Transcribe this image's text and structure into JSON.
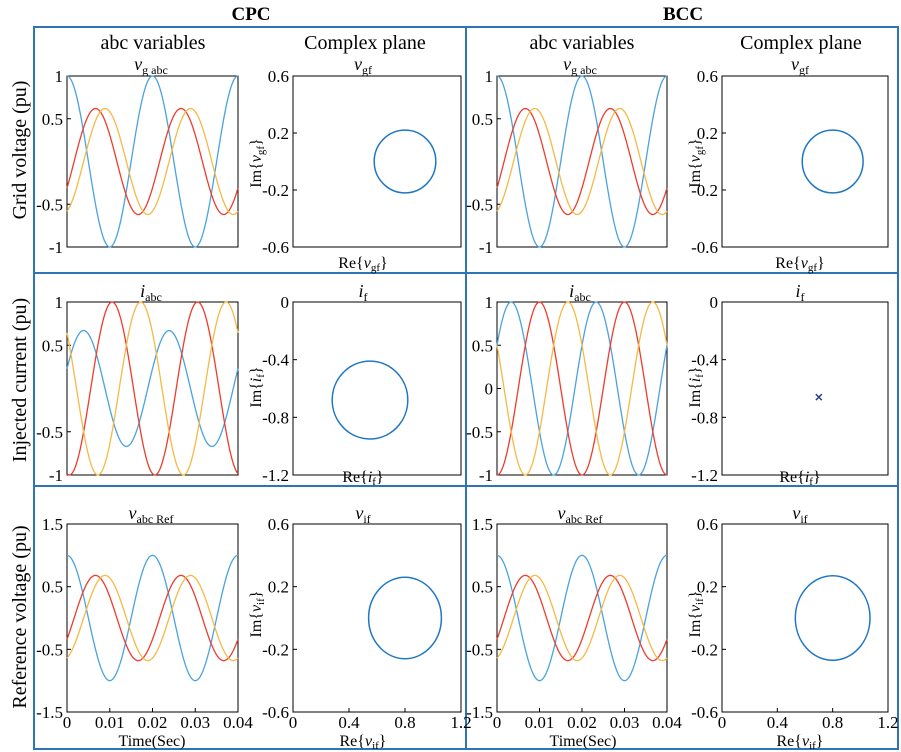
{
  "figure": {
    "columns": [
      "CPC",
      "BCC"
    ],
    "subheadings": [
      "abc variables",
      "Complex plane"
    ],
    "rows": [
      "Grid voltage (pu)",
      "Injected current (pu)",
      "Reference voltage (pu)"
    ],
    "time_axis_label": "Time(Sec)",
    "frame_color": "#2e75b6"
  },
  "colors": {
    "phase_a": "#0072bd",
    "phase_b": "#d95319",
    "phase_c": "#edb120",
    "ab_blue": "#4aa3df",
    "ab_red": "#ee3c2c",
    "ab_yellow": "#f5b945",
    "circle": "#1f77c4"
  },
  "chart_data": [
    {
      "id": "cpc-vg-abc",
      "type": "line",
      "title": "v_g abc",
      "x": {
        "range": [
          0,
          0.04
        ],
        "ticks": [],
        "tick_labels": []
      },
      "y": {
        "range": [
          -1,
          1
        ],
        "ticks": [
          1,
          0.5,
          -0.5,
          -1
        ],
        "tick_labels": [
          "1",
          "0.5",
          "-0.5",
          "-1"
        ]
      },
      "series": [
        {
          "color": "ab_blue",
          "amp": 1.0,
          "freq": 50,
          "phase_deg": 90,
          "dc": 0
        },
        {
          "color": "ab_red",
          "amp": 0.62,
          "freq": 50,
          "phase_deg": -30,
          "dc": 0
        },
        {
          "color": "ab_yellow",
          "amp": 0.62,
          "freq": 50,
          "phase_deg": -70,
          "dc": 0
        }
      ]
    },
    {
      "id": "cpc-vgf",
      "type": "scatter",
      "title": "v_gf",
      "xlabel": "Re{v_gf}",
      "ylabel": "Im{v_gf}",
      "x": {
        "range": [
          0,
          1.2
        ],
        "ticks": [],
        "tick_labels": []
      },
      "y": {
        "range": [
          -0.6,
          0.6
        ],
        "ticks": [
          0.6,
          0.2,
          -0.2,
          -0.6
        ],
        "tick_labels": [
          "0.6",
          "0.2",
          "-0.2",
          "-0.6"
        ]
      },
      "circle": {
        "cx": 0.8,
        "cy": 0.0,
        "r": 0.22
      }
    },
    {
      "id": "bcc-vg-abc",
      "type": "line",
      "title": "v_g abc",
      "x": {
        "range": [
          0,
          0.04
        ],
        "ticks": [],
        "tick_labels": []
      },
      "y": {
        "range": [
          -1,
          1
        ],
        "ticks": [
          1,
          0.5,
          -0.5,
          -1
        ],
        "tick_labels": [
          "1",
          "0.5",
          "-0.5",
          "-1"
        ]
      },
      "series": [
        {
          "color": "ab_blue",
          "amp": 1.0,
          "freq": 50,
          "phase_deg": 90,
          "dc": 0
        },
        {
          "color": "ab_red",
          "amp": 0.62,
          "freq": 50,
          "phase_deg": -30,
          "dc": 0
        },
        {
          "color": "ab_yellow",
          "amp": 0.62,
          "freq": 50,
          "phase_deg": -70,
          "dc": 0
        }
      ]
    },
    {
      "id": "bcc-vgf",
      "type": "scatter",
      "title": "v_gf",
      "xlabel": "Re{v_gf}",
      "ylabel": "Im{v_gf}",
      "x": {
        "range": [
          0,
          1.2
        ],
        "ticks": [],
        "tick_labels": []
      },
      "y": {
        "range": [
          -0.6,
          0.6
        ],
        "ticks": [
          0.6,
          0.2,
          -0.2,
          -0.6
        ],
        "tick_labels": [
          "0.6",
          "0.2",
          "-0.2",
          "-0.6"
        ]
      },
      "circle": {
        "cx": 0.8,
        "cy": 0.0,
        "r": 0.22
      }
    },
    {
      "id": "cpc-iabc",
      "type": "line",
      "title": "i_abc",
      "x": {
        "range": [
          0,
          0.04
        ],
        "ticks": [],
        "tick_labels": []
      },
      "y": {
        "range": [
          -1,
          1
        ],
        "ticks": [
          1,
          0.5,
          -0.5,
          -1
        ],
        "tick_labels": [
          "1",
          "0.5",
          "-0.5",
          "-1"
        ]
      },
      "series": [
        {
          "color": "ab_blue",
          "amp": 0.67,
          "freq": 50,
          "phase_deg": 20,
          "dc": 0
        },
        {
          "color": "ab_red",
          "amp": 1.0,
          "freq": 50,
          "phase_deg": -100,
          "dc": 0
        },
        {
          "color": "ab_yellow",
          "amp": 1.0,
          "freq": 50,
          "phase_deg": 140,
          "dc": 0
        }
      ]
    },
    {
      "id": "cpc-if",
      "type": "scatter",
      "title": "i_f",
      "xlabel": "Re{i_f}",
      "ylabel": "Im{i_f}",
      "x": {
        "range": [
          0,
          1.2
        ],
        "ticks": [],
        "tick_labels": []
      },
      "y": {
        "range": [
          -1.2,
          0
        ],
        "ticks": [
          0,
          -0.4,
          -0.8,
          -1.2
        ],
        "tick_labels": [
          "0",
          "-0.4",
          "-0.8",
          "-1.2"
        ]
      },
      "circle": {
        "cx": 0.55,
        "cy": -0.68,
        "r": 0.27
      }
    },
    {
      "id": "bcc-iabc",
      "type": "line",
      "title": "i_abc",
      "x": {
        "range": [
          0,
          0.04
        ],
        "ticks": [],
        "tick_labels": []
      },
      "y": {
        "range": [
          -1,
          1
        ],
        "ticks": [
          1,
          0.5,
          0,
          -0.5,
          -1
        ],
        "tick_labels": [
          "1",
          "0.5",
          "0",
          "-0.5",
          "-1"
        ]
      },
      "series": [
        {
          "color": "ab_blue",
          "amp": 1.0,
          "freq": 50,
          "phase_deg": 30,
          "dc": 0
        },
        {
          "color": "ab_red",
          "amp": 1.0,
          "freq": 50,
          "phase_deg": -90,
          "dc": 0
        },
        {
          "color": "ab_yellow",
          "amp": 1.0,
          "freq": 50,
          "phase_deg": 150,
          "dc": 0
        }
      ]
    },
    {
      "id": "bcc-if",
      "type": "scatter",
      "title": "i_f",
      "xlabel": "Re{i_f}",
      "ylabel": "Im{i_f}",
      "x": {
        "range": [
          0,
          1.2
        ],
        "ticks": [],
        "tick_labels": []
      },
      "y": {
        "range": [
          -1.2,
          0
        ],
        "ticks": [
          0,
          -0.4,
          -0.8,
          -1.2
        ],
        "tick_labels": [
          "0",
          "-0.4",
          "-0.8",
          "-1.2"
        ]
      },
      "marker": {
        "x": 0.7,
        "y": -0.66,
        "symbol": "x"
      }
    },
    {
      "id": "cpc-vabc-ref",
      "type": "line",
      "title": "v_abc Ref",
      "xlabel": "Time(Sec)",
      "x": {
        "range": [
          0,
          0.04
        ],
        "ticks": [
          0,
          0.01,
          0.02,
          0.03,
          0.04
        ],
        "tick_labels": [
          "0",
          "0.01",
          "0.02",
          "0.03",
          "0.04"
        ]
      },
      "y": {
        "range": [
          -1.5,
          1.5
        ],
        "ticks": [
          1.5,
          0.5,
          -0.5,
          -1.5
        ],
        "tick_labels": [
          "1.5",
          "0.5",
          "-0.5",
          "-1.5"
        ]
      },
      "series": [
        {
          "color": "ab_blue",
          "amp": 1.0,
          "freq": 50,
          "phase_deg": 90,
          "dc": 0
        },
        {
          "color": "ab_red",
          "amp": 0.68,
          "freq": 50,
          "phase_deg": -30,
          "dc": 0
        },
        {
          "color": "ab_yellow",
          "amp": 0.68,
          "freq": 50,
          "phase_deg": -70,
          "dc": 0
        }
      ]
    },
    {
      "id": "cpc-vif",
      "type": "scatter",
      "title": "v_if",
      "xlabel": "Re{v_if}",
      "ylabel": "Im{v_if}",
      "x": {
        "range": [
          0,
          1.2
        ],
        "ticks": [
          0,
          0.4,
          0.8,
          1.2
        ],
        "tick_labels": [
          "0",
          "0.4",
          "0.8",
          "1.2"
        ]
      },
      "y": {
        "range": [
          -0.6,
          0.6
        ],
        "ticks": [
          0.6,
          0.2,
          -0.2,
          -0.6
        ],
        "tick_labels": [
          "0.6",
          "0.2",
          "-0.2",
          "-0.6"
        ]
      },
      "circle": {
        "cx": 0.8,
        "cy": 0.0,
        "r": 0.26
      }
    },
    {
      "id": "bcc-vabc-ref",
      "type": "line",
      "title": "v_abc Ref",
      "xlabel": "Time(Sec)",
      "x": {
        "range": [
          0,
          0.04
        ],
        "ticks": [
          0,
          0.01,
          0.02,
          0.03,
          0.04
        ],
        "tick_labels": [
          "0",
          "0.01",
          "0.02",
          "0.03",
          "0.04"
        ]
      },
      "y": {
        "range": [
          -1.5,
          1.5
        ],
        "ticks": [
          1.5,
          0.5,
          -0.5,
          -1.5
        ],
        "tick_labels": [
          "1.5",
          "0.5",
          "-0.5",
          "-1.5"
        ]
      },
      "series": [
        {
          "color": "ab_blue",
          "amp": 1.0,
          "freq": 50,
          "phase_deg": 90,
          "dc": 0
        },
        {
          "color": "ab_red",
          "amp": 0.68,
          "freq": 50,
          "phase_deg": -30,
          "dc": 0
        },
        {
          "color": "ab_yellow",
          "amp": 0.68,
          "freq": 50,
          "phase_deg": -70,
          "dc": 0
        }
      ]
    },
    {
      "id": "bcc-vif",
      "type": "scatter",
      "title": "v_if",
      "xlabel": "Re{v_if}",
      "ylabel": "Im{v_if}",
      "x": {
        "range": [
          0,
          1.2
        ],
        "ticks": [
          0,
          0.4,
          0.8,
          1.2
        ],
        "tick_labels": [
          "0",
          "0.4",
          "0.8",
          "1.2"
        ]
      },
      "y": {
        "range": [
          -0.6,
          0.6
        ],
        "ticks": [
          0.6,
          0.2,
          -0.2,
          -0.6
        ],
        "tick_labels": [
          "0.6",
          "0.2",
          "-0.2",
          "-0.6"
        ]
      },
      "circle": {
        "cx": 0.8,
        "cy": 0.0,
        "r": 0.27
      }
    }
  ]
}
